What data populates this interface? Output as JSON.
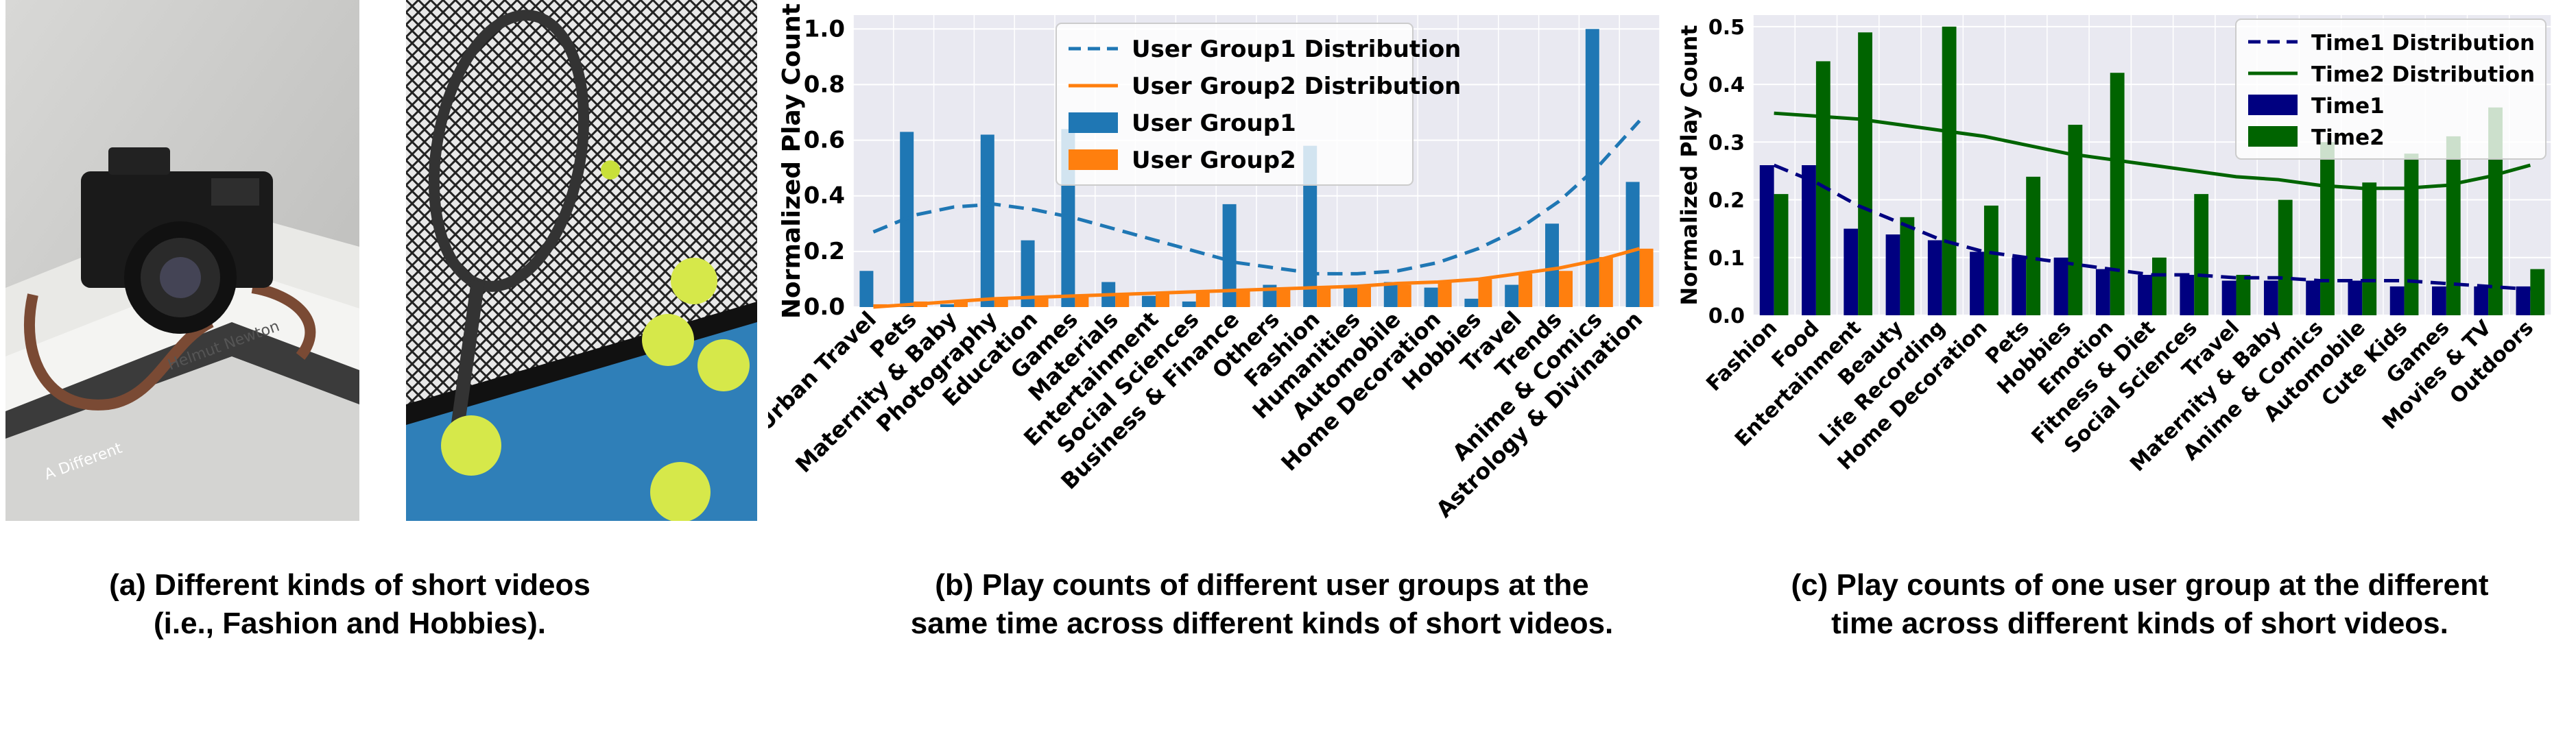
{
  "captions": {
    "a": {
      "line1": "(a) Different kinds of short videos",
      "line2": "(i.e., Fashion and Hobbies)."
    },
    "b": {
      "line1": "(b) Play counts of different user groups at the",
      "line2": "same time across different kinds of short videos."
    },
    "c": {
      "line1": "(c) Play counts of one user group at the different",
      "line2": "time across different kinds of short videos."
    }
  },
  "photos": {
    "fashion_camera": {
      "subject": "camera-on-books"
    },
    "hobbies_tennis": {
      "subject": "tennis-racket-and-balls"
    }
  },
  "colors": {
    "plot_bg": "#e9e9f1",
    "grid": "#ffffff",
    "blue": "#1f77b4",
    "orange": "#ff7f0e",
    "navy": "#000080",
    "green": "#006400"
  },
  "chart_data": [
    {
      "type": "bar",
      "ylabel": "Normalized Play Count",
      "ylim": [
        0,
        1.05
      ],
      "yticks": [
        "0.0",
        "0.2",
        "0.4",
        "0.6",
        "0.8",
        "1.0"
      ],
      "legend_position": "top-center",
      "categories": [
        "Urban Travel",
        "Pets",
        "Maternity & Baby",
        "Photography",
        "Education",
        "Games",
        "Materials",
        "Entertainment",
        "Social Sciences",
        "Business & Finance",
        "Others",
        "Fashion",
        "Humanities",
        "Automobile",
        "Home Decoration",
        "Hobbies",
        "Travel",
        "Trends",
        "Anime & Comics",
        "Astrology & Divination"
      ],
      "series": [
        {
          "name": "User Group1",
          "kind": "bar",
          "color": "#1f77b4",
          "values": [
            0.13,
            0.63,
            0.01,
            0.62,
            0.24,
            0.64,
            0.09,
            0.04,
            0.02,
            0.37,
            0.08,
            0.58,
            0.07,
            0.09,
            0.07,
            0.03,
            0.08,
            0.3,
            1.0,
            0.45
          ]
        },
        {
          "name": "User Group2",
          "kind": "bar",
          "color": "#ff7f0e",
          "values": [
            0.01,
            0.02,
            0.02,
            0.03,
            0.04,
            0.04,
            0.05,
            0.05,
            0.06,
            0.06,
            0.07,
            0.07,
            0.08,
            0.08,
            0.09,
            0.1,
            0.12,
            0.13,
            0.18,
            0.21
          ]
        },
        {
          "name": "User Group1 Distribution",
          "kind": "line",
          "dashed": true,
          "color": "#1f77b4",
          "values": [
            0.27,
            0.33,
            0.36,
            0.37,
            0.35,
            0.32,
            0.28,
            0.24,
            0.2,
            0.16,
            0.14,
            0.12,
            0.12,
            0.13,
            0.16,
            0.21,
            0.28,
            0.38,
            0.51,
            0.67
          ]
        },
        {
          "name": "User Group2 Distribution",
          "kind": "line",
          "dashed": false,
          "color": "#ff7f0e",
          "values": [
            0.0,
            0.01,
            0.02,
            0.03,
            0.035,
            0.04,
            0.045,
            0.05,
            0.055,
            0.06,
            0.065,
            0.07,
            0.075,
            0.085,
            0.09,
            0.1,
            0.12,
            0.14,
            0.17,
            0.21
          ]
        }
      ]
    },
    {
      "type": "bar",
      "ylabel": "Normalized Play Count",
      "ylim": [
        0,
        0.52
      ],
      "yticks": [
        "0.0",
        "0.1",
        "0.2",
        "0.3",
        "0.4",
        "0.5"
      ],
      "legend_position": "top-right",
      "categories": [
        "Fashion",
        "Food",
        "Entertainment",
        "Beauty",
        "Life Recording",
        "Home Decoration",
        "Pets",
        "Hobbies",
        "Emotion",
        "Fitness & Diet",
        "Social Sciences",
        "Travel",
        "Maternity & Baby",
        "Anime & Comics",
        "Automobile",
        "Cute Kids",
        "Games",
        "Movies & TV",
        "Outdoors"
      ],
      "series": [
        {
          "name": "Time1",
          "kind": "bar",
          "color": "#000080",
          "values": [
            0.26,
            0.26,
            0.15,
            0.14,
            0.13,
            0.11,
            0.1,
            0.1,
            0.08,
            0.07,
            0.07,
            0.06,
            0.06,
            0.06,
            0.06,
            0.05,
            0.05,
            0.05,
            0.05
          ]
        },
        {
          "name": "Time2",
          "kind": "bar",
          "color": "#006400",
          "values": [
            0.21,
            0.44,
            0.49,
            0.17,
            0.5,
            0.19,
            0.24,
            0.33,
            0.42,
            0.1,
            0.21,
            0.07,
            0.2,
            0.3,
            0.23,
            0.28,
            0.31,
            0.36,
            0.08
          ]
        },
        {
          "name": "Time1 Distribution",
          "kind": "line",
          "dashed": true,
          "color": "#000080",
          "values": [
            0.26,
            0.23,
            0.19,
            0.16,
            0.13,
            0.11,
            0.1,
            0.09,
            0.08,
            0.07,
            0.07,
            0.065,
            0.065,
            0.06,
            0.06,
            0.06,
            0.055,
            0.05,
            0.045
          ]
        },
        {
          "name": "Time2 Distribution",
          "kind": "line",
          "dashed": false,
          "color": "#006400",
          "values": [
            0.35,
            0.345,
            0.34,
            0.33,
            0.32,
            0.31,
            0.295,
            0.28,
            0.27,
            0.26,
            0.25,
            0.24,
            0.235,
            0.225,
            0.22,
            0.22,
            0.225,
            0.24,
            0.26
          ]
        }
      ]
    }
  ]
}
